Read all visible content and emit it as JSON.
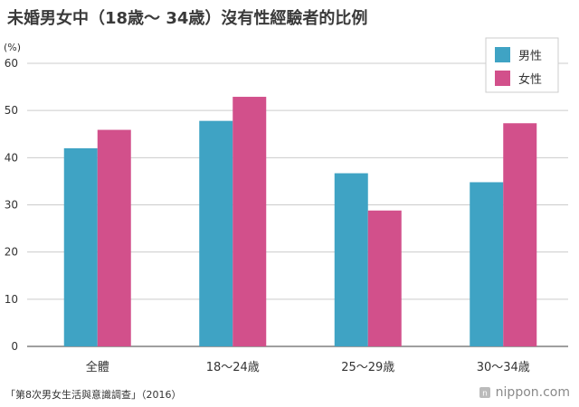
{
  "title": "未婚男女中（18歳〜 34歳）沒有性經驗者的比例",
  "source": "「第8次男女生活與意識調查」（2016）",
  "brand": "nippon.com",
  "colors": {
    "male": "#3fa3c4",
    "female": "#d2508b",
    "grid": "#cccccc",
    "axis": "#666666"
  },
  "chart_data": {
    "type": "bar",
    "unit": "(%)",
    "categories": [
      "全體",
      "18〜24歳",
      "25〜29歳",
      "30〜34歳"
    ],
    "series": [
      {
        "name": "男性",
        "values": [
          42.0,
          47.8,
          36.7,
          34.8
        ]
      },
      {
        "name": "女性",
        "values": [
          45.9,
          52.9,
          28.8,
          47.3
        ]
      }
    ],
    "ylim": [
      0,
      60
    ],
    "yticks": [
      0,
      10,
      20,
      30,
      40,
      50,
      60
    ],
    "grid": true,
    "legend": "top-right"
  }
}
